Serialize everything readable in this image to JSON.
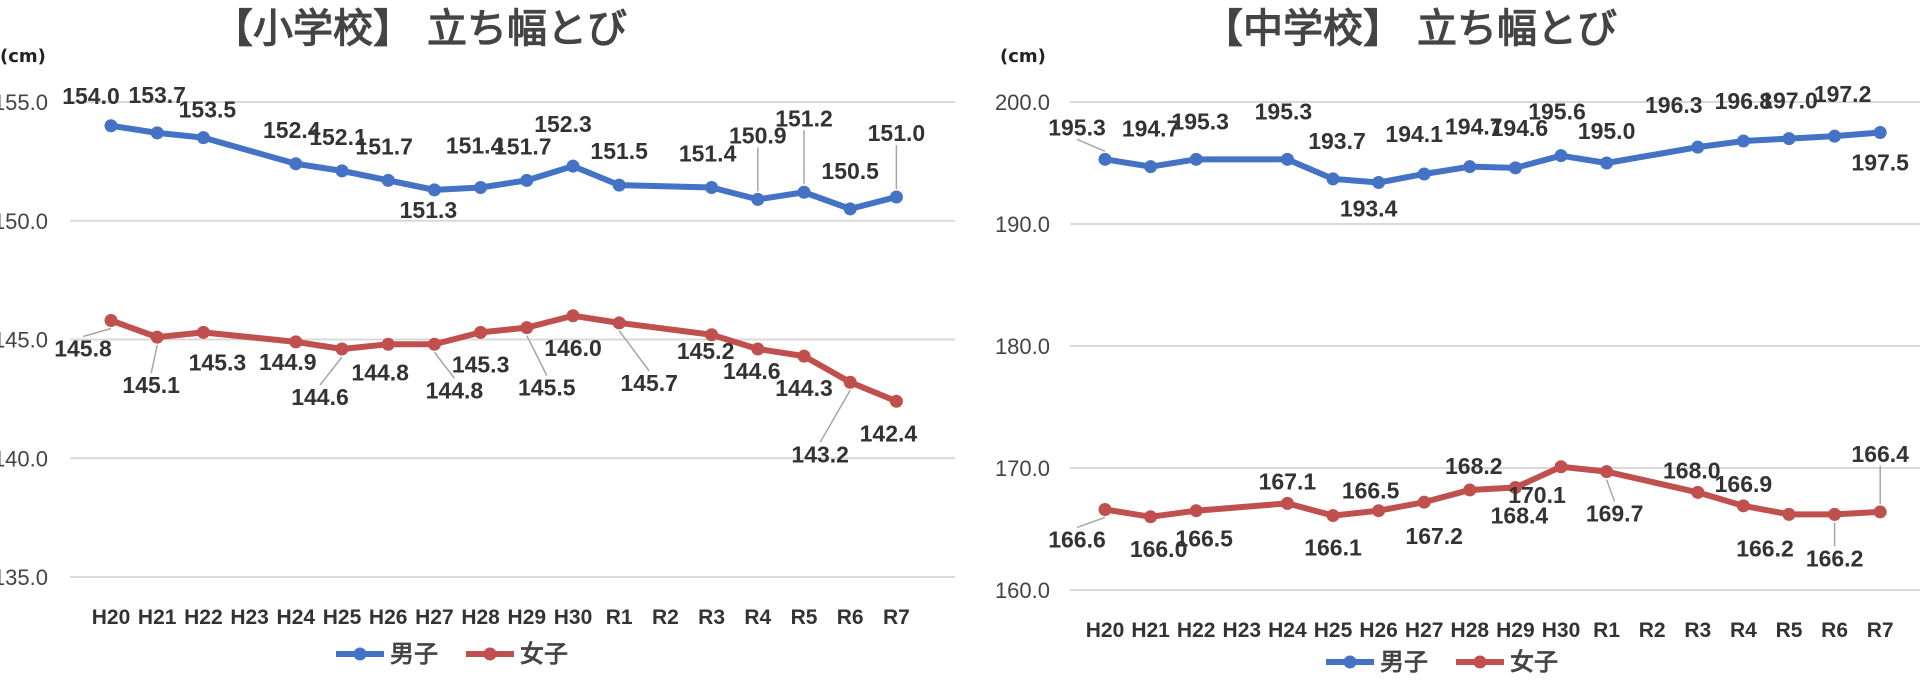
{
  "chart_data": [
    {
      "type": "line",
      "title": "【小学校】 立ち幅とび",
      "unit": "(cm)",
      "categories": [
        "H20",
        "H21",
        "H22",
        "H23",
        "H24",
        "H25",
        "H26",
        "H27",
        "H28",
        "H29",
        "H30",
        "R1",
        "R2",
        "R3",
        "R4",
        "R5",
        "R6",
        "R7"
      ],
      "ylim": [
        135.0,
        155.0
      ],
      "yticks": [
        "135.0",
        "140.0",
        "145.0",
        "150.0",
        "155.0"
      ],
      "series": [
        {
          "name": "男子",
          "color": "#4472c4",
          "values": [
            154.0,
            153.7,
            153.5,
            null,
            152.4,
            152.1,
            151.7,
            151.3,
            151.4,
            151.7,
            152.3,
            151.5,
            null,
            151.4,
            150.9,
            151.2,
            150.5,
            151.0
          ],
          "labels": [
            "154.0",
            "153.7",
            "153.5",
            "",
            "152.4",
            "152.1",
            "151.7",
            "151.3",
            "151.4",
            "151.7",
            "152.3",
            "151.5",
            "",
            "151.4",
            "150.9",
            "151.2",
            "150.5",
            "151.0"
          ]
        },
        {
          "name": "女子",
          "color": "#c0504d",
          "values": [
            145.8,
            145.1,
            145.3,
            null,
            144.9,
            144.6,
            144.8,
            144.8,
            145.3,
            145.5,
            146.0,
            145.7,
            null,
            145.2,
            144.6,
            144.3,
            143.2,
            142.4
          ],
          "labels": [
            "145.8",
            "145.1",
            "145.3",
            "",
            "144.9",
            "144.6",
            "144.8",
            "144.8",
            "145.3",
            "145.5",
            "146.0",
            "145.7",
            "",
            "145.2",
            "144.6",
            "144.3",
            "143.2",
            "142.4"
          ]
        }
      ],
      "legend": "bottom"
    },
    {
      "type": "line",
      "title": "【中学校】 立ち幅とび",
      "unit": "(cm)",
      "categories": [
        "H20",
        "H21",
        "H22",
        "H23",
        "H24",
        "H25",
        "H26",
        "H27",
        "H28",
        "H29",
        "H30",
        "R1",
        "R2",
        "R3",
        "R4",
        "R5",
        "R6",
        "R7"
      ],
      "ylim": [
        160.0,
        200.0
      ],
      "yticks": [
        "160.0",
        "170.0",
        "180.0",
        "190.0",
        "200.0"
      ],
      "series": [
        {
          "name": "男子",
          "color": "#4472c4",
          "values": [
            195.3,
            194.7,
            195.3,
            null,
            195.3,
            193.7,
            193.4,
            194.1,
            194.7,
            194.6,
            195.6,
            195.0,
            null,
            196.3,
            196.8,
            197.0,
            197.2,
            197.5
          ],
          "labels": [
            "195.3",
            "194.7",
            "195.3",
            "",
            "195.3",
            "193.7",
            "193.4",
            "194.1",
            "194.7",
            "194.6",
            "195.6",
            "195.0",
            "",
            "196.3",
            "196.8",
            "197.0",
            "197.2",
            "197.5"
          ]
        },
        {
          "name": "女子",
          "color": "#c0504d",
          "values": [
            166.6,
            166.0,
            166.5,
            null,
            167.1,
            166.1,
            166.5,
            167.2,
            168.2,
            168.4,
            170.1,
            169.7,
            null,
            168.0,
            166.9,
            166.2,
            166.2,
            166.4
          ],
          "labels": [
            "166.6",
            "166.0",
            "166.5",
            "",
            "167.1",
            "166.1",
            "166.5",
            "167.2",
            "168.2",
            "168.4",
            "170.1",
            "169.7",
            "",
            "168.0",
            "166.9",
            "166.2",
            "166.2",
            "166.4"
          ]
        }
      ],
      "legend": "bottom"
    }
  ]
}
